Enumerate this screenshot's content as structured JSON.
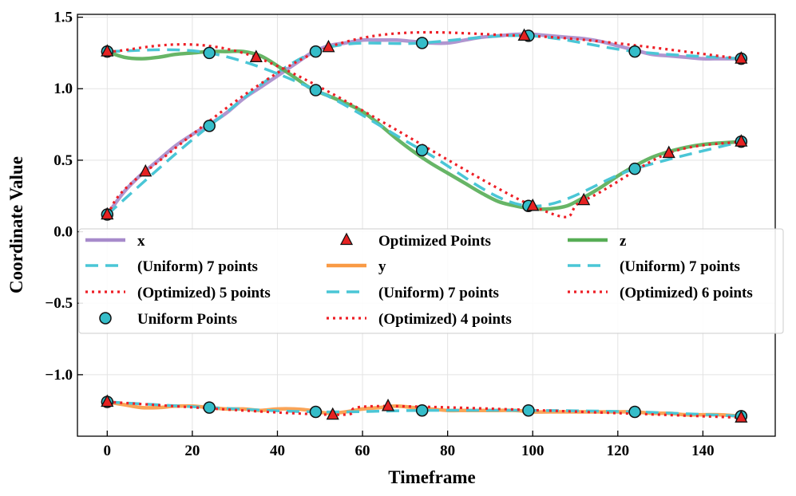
{
  "chart_data": {
    "type": "line",
    "title": "",
    "xlabel": "Timeframe",
    "ylabel": "Coordinate Value",
    "xlim": [
      -7,
      157
    ],
    "ylim": [
      -1.43,
      1.52
    ],
    "xticks": [
      0,
      20,
      40,
      60,
      80,
      100,
      120,
      140
    ],
    "xtick_labels": [
      "0",
      "20",
      "40",
      "60",
      "80",
      "100",
      "120",
      "140"
    ],
    "yticks": [
      -1.0,
      -0.5,
      0.0,
      0.5,
      1.0,
      1.5
    ],
    "ytick_labels": [
      "−1.0",
      "−0.5",
      "0.0",
      "0.5",
      "1.0",
      "1.5"
    ],
    "grid": true,
    "legend": {
      "placement": "center",
      "columns": 3
    },
    "colors": {
      "x": "#a78bcb",
      "y": "#f99a45",
      "z": "#57ad55",
      "uniform": "#4ac6d6",
      "optimized": "#ee1f26",
      "uniform_points": "#35bdc9",
      "optimized_points": "#e62222"
    },
    "series": [
      {
        "name": "x",
        "x": [
          0,
          4,
          8,
          12,
          16,
          20,
          24,
          28,
          32,
          36,
          40,
          44,
          48,
          52,
          56,
          60,
          64,
          68,
          72,
          76,
          80,
          84,
          88,
          92,
          96,
          100,
          104,
          108,
          112,
          116,
          120,
          124,
          128,
          132,
          136,
          140,
          144,
          149
        ],
        "values": [
          0.12,
          0.28,
          0.4,
          0.5,
          0.6,
          0.68,
          0.75,
          0.83,
          0.93,
          1.01,
          1.09,
          1.17,
          1.25,
          1.3,
          1.32,
          1.34,
          1.34,
          1.34,
          1.33,
          1.32,
          1.32,
          1.34,
          1.36,
          1.37,
          1.38,
          1.38,
          1.37,
          1.36,
          1.35,
          1.33,
          1.3,
          1.27,
          1.24,
          1.23,
          1.22,
          1.21,
          1.21,
          1.21
        ]
      },
      {
        "name": "(Uniform) 7 points",
        "x": [
          0,
          24,
          49,
          74,
          99,
          124,
          149
        ],
        "values": [
          0.12,
          0.74,
          1.26,
          1.32,
          1.37,
          1.26,
          1.21
        ]
      },
      {
        "name": "(Optimized) 5 points",
        "x": [
          0,
          9,
          52,
          98,
          149
        ],
        "values": [
          0.12,
          0.42,
          1.29,
          1.37,
          1.21
        ]
      },
      {
        "name": "y",
        "x": [
          0,
          4,
          8,
          12,
          16,
          20,
          24,
          28,
          32,
          36,
          40,
          44,
          48,
          52,
          56,
          60,
          64,
          68,
          72,
          76,
          80,
          84,
          88,
          92,
          96,
          100,
          104,
          108,
          112,
          116,
          120,
          124,
          128,
          132,
          136,
          140,
          144,
          149
        ],
        "values": [
          -1.19,
          -1.21,
          -1.23,
          -1.23,
          -1.22,
          -1.22,
          -1.23,
          -1.24,
          -1.24,
          -1.25,
          -1.24,
          -1.24,
          -1.25,
          -1.27,
          -1.26,
          -1.24,
          -1.23,
          -1.22,
          -1.23,
          -1.24,
          -1.25,
          -1.25,
          -1.25,
          -1.25,
          -1.25,
          -1.26,
          -1.26,
          -1.26,
          -1.26,
          -1.26,
          -1.26,
          -1.26,
          -1.27,
          -1.27,
          -1.28,
          -1.28,
          -1.28,
          -1.29
        ]
      },
      {
        "name": "(Uniform) 7 points",
        "x": [
          0,
          24,
          49,
          74,
          99,
          124,
          149
        ],
        "values": [
          -1.19,
          -1.23,
          -1.26,
          -1.25,
          -1.25,
          -1.26,
          -1.29
        ]
      },
      {
        "name": "(Optimized) 4 points",
        "x": [
          0,
          53,
          66,
          149
        ],
        "values": [
          -1.19,
          -1.28,
          -1.22,
          -1.3
        ]
      },
      {
        "name": "z",
        "x": [
          0,
          4,
          8,
          12,
          16,
          20,
          24,
          28,
          32,
          36,
          40,
          44,
          48,
          52,
          56,
          60,
          64,
          68,
          72,
          76,
          80,
          84,
          88,
          92,
          96,
          100,
          104,
          108,
          112,
          116,
          120,
          124,
          128,
          132,
          136,
          140,
          144,
          149
        ],
        "values": [
          1.26,
          1.22,
          1.21,
          1.22,
          1.24,
          1.25,
          1.26,
          1.26,
          1.26,
          1.23,
          1.16,
          1.08,
          1.0,
          0.95,
          0.9,
          0.84,
          0.75,
          0.65,
          0.56,
          0.48,
          0.41,
          0.34,
          0.27,
          0.21,
          0.18,
          0.16,
          0.16,
          0.18,
          0.24,
          0.31,
          0.39,
          0.46,
          0.52,
          0.56,
          0.59,
          0.61,
          0.62,
          0.63
        ]
      },
      {
        "name": "(Uniform) 7 points",
        "x": [
          0,
          24,
          49,
          74,
          99,
          124,
          149
        ],
        "values": [
          1.26,
          1.25,
          0.99,
          0.57,
          0.18,
          0.44,
          0.63
        ]
      },
      {
        "name": "(Optimized) 6 points",
        "x": [
          0,
          35,
          100,
          112,
          132,
          149
        ],
        "values": [
          1.26,
          1.22,
          0.18,
          0.22,
          0.55,
          0.63
        ]
      }
    ],
    "uniform_points": {
      "name": "Uniform Points",
      "x": [
        0,
        24,
        49,
        74,
        99,
        124,
        149
      ],
      "x_values": [
        0.12,
        0.74,
        1.26,
        1.32,
        1.37,
        1.26,
        1.21
      ],
      "y_values": [
        -1.19,
        -1.23,
        -1.26,
        -1.25,
        -1.25,
        -1.26,
        -1.29
      ],
      "z_values": [
        1.26,
        1.25,
        0.99,
        0.57,
        0.18,
        0.44,
        0.63
      ]
    },
    "optimized_points": {
      "name": "Optimized Points",
      "x": {
        "x": [
          0,
          9,
          52,
          98,
          149
        ],
        "values": [
          0.12,
          0.42,
          1.29,
          1.37,
          1.21
        ]
      },
      "y": {
        "x": [
          0,
          53,
          66,
          149
        ],
        "values": [
          -1.19,
          -1.28,
          -1.22,
          -1.3
        ]
      },
      "z": {
        "x": [
          0,
          35,
          100,
          112,
          132,
          149
        ],
        "values": [
          1.26,
          1.22,
          0.18,
          0.22,
          0.55,
          0.63
        ]
      }
    },
    "legend_entries": [
      {
        "label": "x",
        "kind": "line",
        "color_key": "x"
      },
      {
        "label": "(Uniform) 7 points",
        "kind": "dashed",
        "color_key": "uniform"
      },
      {
        "label": "(Optimized) 5 points",
        "kind": "dotted",
        "color_key": "optimized"
      },
      {
        "label": "Uniform Points",
        "kind": "circle",
        "color_key": "uniform_points"
      },
      {
        "label": "Optimized Points",
        "kind": "triangle",
        "color_key": "optimized_points"
      },
      {
        "label": "y",
        "kind": "line",
        "color_key": "y"
      },
      {
        "label": "(Uniform) 7 points",
        "kind": "dashed",
        "color_key": "uniform"
      },
      {
        "label": "(Optimized) 4 points",
        "kind": "dotted",
        "color_key": "optimized"
      },
      {
        "label": "z",
        "kind": "line",
        "color_key": "z"
      },
      {
        "label": "(Uniform) 7 points",
        "kind": "dashed",
        "color_key": "uniform"
      },
      {
        "label": "(Optimized) 6 points",
        "kind": "dotted",
        "color_key": "optimized"
      }
    ]
  }
}
